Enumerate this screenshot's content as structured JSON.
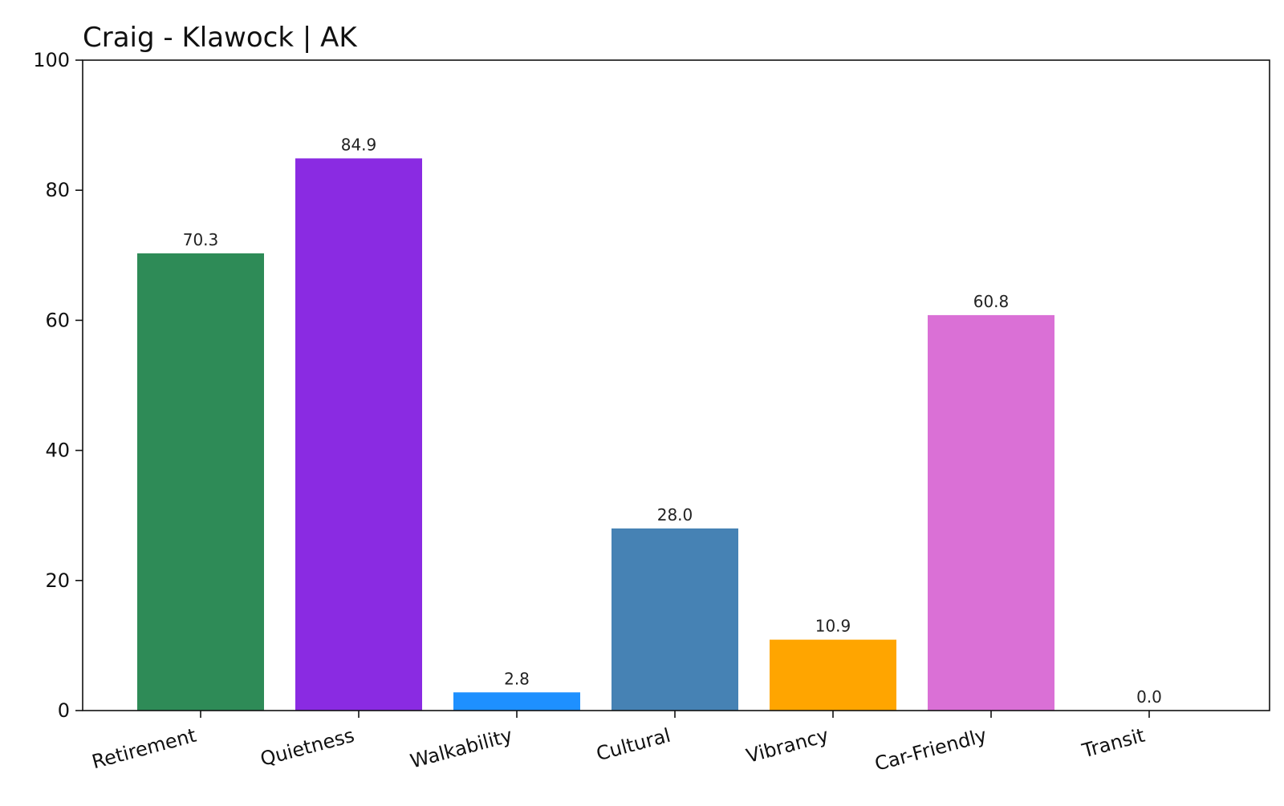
{
  "chart_data": {
    "type": "bar",
    "title": "Craig - Klawock | AK",
    "xlabel": "",
    "ylabel": "",
    "categories": [
      "Retirement",
      "Quietness",
      "Walkability",
      "Cultural",
      "Vibrancy",
      "Car-Friendly",
      "Transit"
    ],
    "values": [
      70.3,
      84.9,
      2.8,
      28.0,
      10.9,
      60.8,
      0.0
    ],
    "value_labels": [
      "70.3",
      "84.9",
      "2.8",
      "28.0",
      "10.9",
      "60.8",
      "0.0"
    ],
    "colors": [
      "#2e8b57",
      "#8a2be2",
      "#1e90ff",
      "#4682b4",
      "#ffa500",
      "#da70d6",
      "#808080"
    ],
    "ylim": [
      0,
      100
    ],
    "yticks": [
      0,
      20,
      40,
      60,
      80,
      100
    ],
    "ytick_labels": [
      "0",
      "20",
      "40",
      "60",
      "80",
      "100"
    ],
    "xtick_rotation": "slanted",
    "grid": false,
    "legend": "none"
  }
}
